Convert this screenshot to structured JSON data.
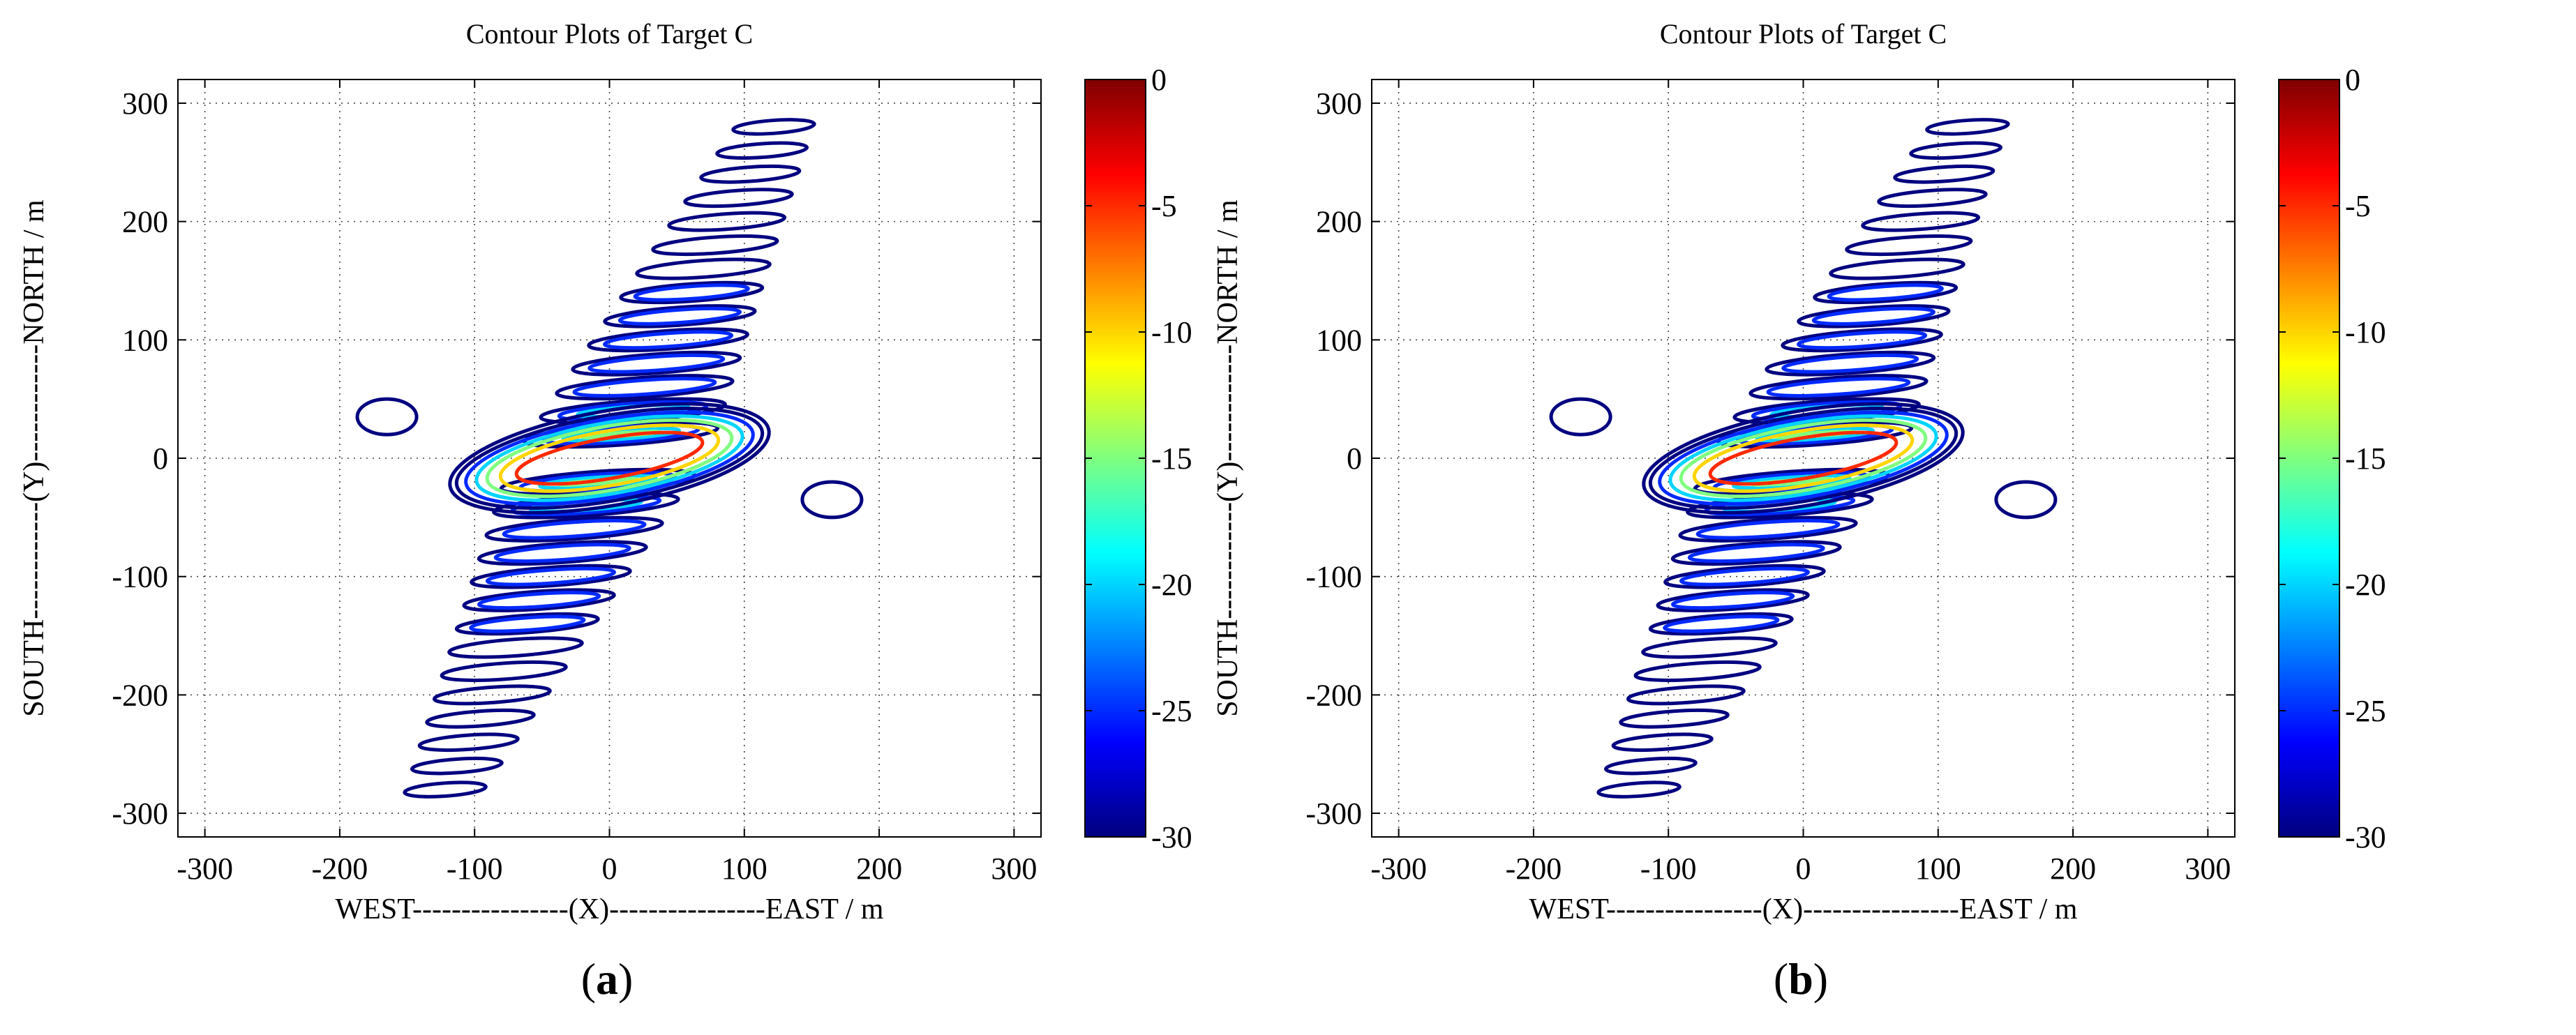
{
  "chart_data": [
    {
      "panel_label": "a",
      "type": "contour",
      "title": "Contour Plots of Target C",
      "xlabel": "WEST----------------(X)----------------EAST / m",
      "ylabel": "SOUTH------------(Y)------------NORTH / m",
      "xlim": [
        -320,
        320
      ],
      "ylim": [
        -320,
        320
      ],
      "xticks": [
        -300,
        -200,
        -100,
        0,
        100,
        200,
        300
      ],
      "yticks": [
        -300,
        -200,
        -100,
        0,
        100,
        200,
        300
      ],
      "grid": "dotted",
      "colorbar": {
        "range": [
          -30,
          0
        ],
        "ticks": [
          0,
          -5,
          -10,
          -15,
          -20,
          -25,
          -30
        ],
        "colormap": "jet"
      },
      "contour_levels_db": [
        -30,
        -25,
        -20,
        -15,
        -10,
        -5
      ],
      "main_lobe": {
        "center": [
          0,
          0
        ],
        "level_db": -5,
        "semi_major": 70,
        "semi_minor": 17,
        "tilt_deg": 10
      },
      "sidelobe_ridge": {
        "direction": "southwest to northeast",
        "extent_x": [
          -135,
          125
        ],
        "extent_y": [
          -295,
          280
        ]
      },
      "isolated_lobes": [
        {
          "center": [
            -165,
            35
          ],
          "level_db": -30
        },
        {
          "center": [
            165,
            -35
          ],
          "level_db": -30
        }
      ]
    },
    {
      "panel_label": "b",
      "type": "contour",
      "title": "Contour Plots of Target C",
      "xlabel": "WEST----------------(X)----------------EAST / m",
      "ylabel": "SOUTH------------(Y)------------NORTH / m",
      "xlim": [
        -320,
        320
      ],
      "ylim": [
        -320,
        320
      ],
      "xticks": [
        -300,
        -200,
        -100,
        0,
        100,
        200,
        300
      ],
      "yticks": [
        -300,
        -200,
        -100,
        0,
        100,
        200,
        300
      ],
      "grid": "dotted",
      "colorbar": {
        "range": [
          -30,
          0
        ],
        "ticks": [
          0,
          -5,
          -10,
          -15,
          -20,
          -25,
          -30
        ],
        "colormap": "jet"
      },
      "contour_levels_db": [
        -30,
        -25,
        -20,
        -15,
        -10,
        -5
      ],
      "main_lobe": {
        "center": [
          0,
          0
        ],
        "level_db": -5,
        "semi_major": 70,
        "semi_minor": 17,
        "tilt_deg": 10
      },
      "sidelobe_ridge": {
        "direction": "southwest to northeast",
        "extent_x": [
          -135,
          125
        ],
        "extent_y": [
          -295,
          280
        ]
      },
      "isolated_lobes": [
        {
          "center": [
            -165,
            35
          ],
          "level_db": -30
        },
        {
          "center": [
            165,
            -35
          ],
          "level_db": -30
        }
      ]
    }
  ]
}
